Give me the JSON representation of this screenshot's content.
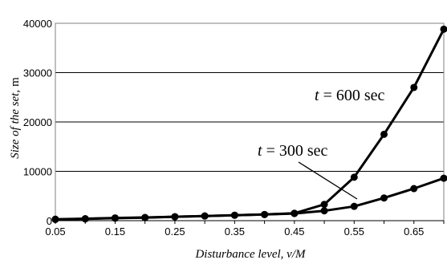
{
  "chart_data": {
    "type": "line",
    "x": [
      0.05,
      0.1,
      0.15,
      0.2,
      0.25,
      0.3,
      0.35,
      0.4,
      0.45,
      0.5,
      0.55,
      0.6,
      0.65,
      0.7
    ],
    "x_tick_labels": [
      "0.05",
      "0.15",
      "0.25",
      "0.35",
      "0.45",
      "0.55",
      "0.65"
    ],
    "y_tick_labels": [
      "0",
      "10000",
      "20000",
      "30000",
      "40000"
    ],
    "xlim": [
      0.05,
      0.7
    ],
    "ylim": [
      0,
      40000
    ],
    "grid": "horizontal",
    "xlabel": "Disturbance level, v/M",
    "ylabel_italic": "Size of the set,",
    "ylabel_unit": "m",
    "series": [
      {
        "name_var": "t",
        "name_rest": " = 600 sec",
        "values": [
          300,
          400,
          550,
          650,
          800,
          950,
          1100,
          1250,
          1500,
          3300,
          8800,
          17500,
          27000,
          38800
        ]
      },
      {
        "name_var": "t",
        "name_rest": " = 300 sec",
        "values": [
          250,
          350,
          500,
          600,
          800,
          950,
          1100,
          1250,
          1450,
          2000,
          2900,
          4600,
          6500,
          8600
        ]
      }
    ],
    "line_color": "#000000",
    "grid_color": "#000000"
  }
}
